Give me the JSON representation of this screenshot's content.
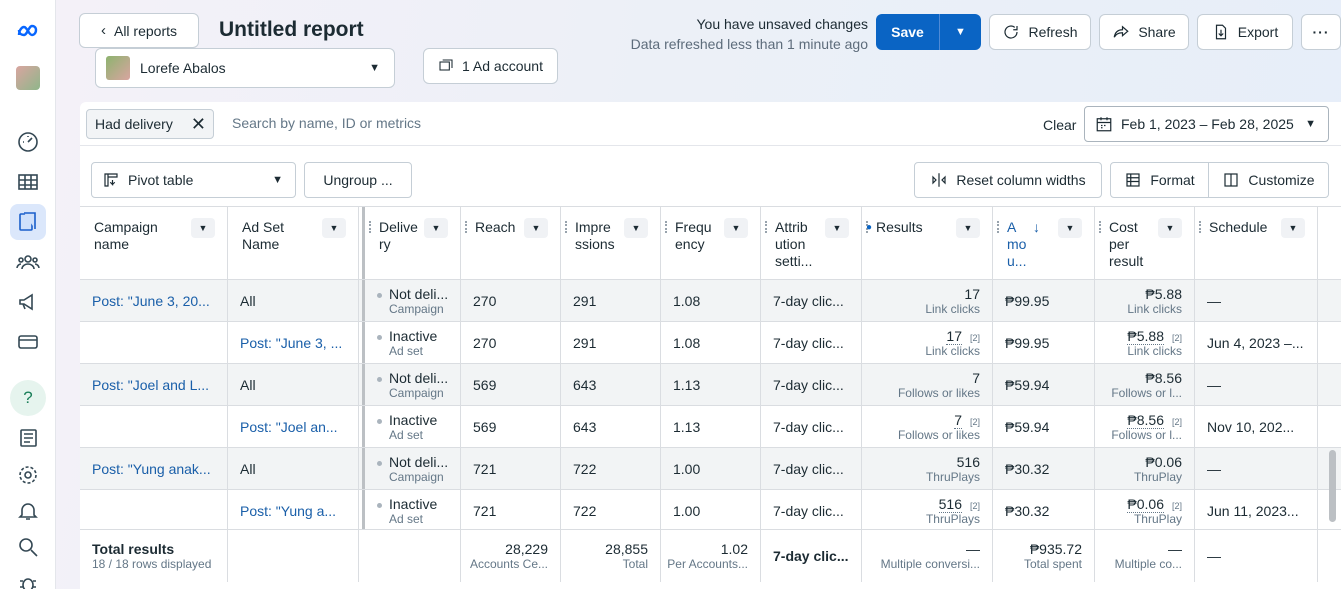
{
  "header": {
    "back_label": "All reports",
    "title": "Untitled report",
    "account_name": "Lorefe Abalos",
    "ad_account_label": "1 Ad account",
    "unsaved_text": "You have unsaved changes",
    "refreshed_text": "Data refreshed less than 1 minute ago",
    "save_label": "Save",
    "refresh_label": "Refresh",
    "share_label": "Share",
    "export_label": "Export"
  },
  "filter": {
    "chip_label": "Had delivery",
    "search_placeholder": "Search by name, ID or metrics",
    "clear_label": "Clear",
    "date_range": "Feb 1, 2023 – Feb 28, 2025"
  },
  "toolbar": {
    "pivot_label": "Pivot table",
    "ungroup_label": "Ungroup ...",
    "reset_label": "Reset column widths",
    "format_label": "Format",
    "customize_label": "Customize"
  },
  "columns": [
    {
      "l1": "Campaign",
      "l2": "name",
      "l3": ""
    },
    {
      "l1": "Ad Set",
      "l2": "Name",
      "l3": ""
    },
    {
      "l1": "Delive",
      "l2": "ry",
      "l3": ""
    },
    {
      "l1": "Reach",
      "l2": "",
      "l3": ""
    },
    {
      "l1": "Impre",
      "l2": "ssions",
      "l3": ""
    },
    {
      "l1": "Frequ",
      "l2": "ency",
      "l3": ""
    },
    {
      "l1": "Attrib",
      "l2": "ution",
      "l3": "setti..."
    },
    {
      "l1": "Results",
      "l2": "",
      "l3": ""
    },
    {
      "l1": "A",
      "l2": "mo",
      "l3": "u..."
    },
    {
      "l1": "Cost",
      "l2": "per",
      "l3": "result"
    },
    {
      "l1": "Schedule",
      "l2": "",
      "l3": ""
    }
  ],
  "rows": [
    {
      "campaign": "Post: \"June 3, 20...",
      "adset": "All",
      "delivery": "Not deli...",
      "delivery_sub": "Campaign",
      "reach": "270",
      "impressions": "291",
      "frequency": "1.08",
      "attribution": "7-day clic...",
      "results": "17",
      "results_sub": "Link clicks",
      "amount": "₱99.95",
      "cost": "₱5.88",
      "cost_sub": "Link clicks",
      "schedule": "—",
      "sup": ""
    },
    {
      "campaign": "",
      "adset": "Post: \"June 3, ...",
      "delivery": "Inactive",
      "delivery_sub": "Ad set",
      "reach": "270",
      "impressions": "291",
      "frequency": "1.08",
      "attribution": "7-day clic...",
      "results": "17",
      "results_sub": "Link clicks",
      "amount": "₱99.95",
      "cost": "₱5.88",
      "cost_sub": "Link clicks",
      "schedule": "Jun 4, 2023 –...",
      "sup": "[2]"
    },
    {
      "campaign": "Post: \"Joel and L...",
      "adset": "All",
      "delivery": "Not deli...",
      "delivery_sub": "Campaign",
      "reach": "569",
      "impressions": "643",
      "frequency": "1.13",
      "attribution": "7-day clic...",
      "results": "7",
      "results_sub": "Follows or likes",
      "amount": "₱59.94",
      "cost": "₱8.56",
      "cost_sub": "Follows or l...",
      "schedule": "—",
      "sup": ""
    },
    {
      "campaign": "",
      "adset": "Post: \"Joel an...",
      "delivery": "Inactive",
      "delivery_sub": "Ad set",
      "reach": "569",
      "impressions": "643",
      "frequency": "1.13",
      "attribution": "7-day clic...",
      "results": "7",
      "results_sub": "Follows or likes",
      "amount": "₱59.94",
      "cost": "₱8.56",
      "cost_sub": "Follows or l...",
      "schedule": "Nov 10, 202...",
      "sup": "[2]"
    },
    {
      "campaign": "Post: \"Yung anak...",
      "adset": "All",
      "delivery": "Not deli...",
      "delivery_sub": "Campaign",
      "reach": "721",
      "impressions": "722",
      "frequency": "1.00",
      "attribution": "7-day clic...",
      "results": "516",
      "results_sub": "ThruPlays",
      "amount": "₱30.32",
      "cost": "₱0.06",
      "cost_sub": "ThruPlay",
      "schedule": "—",
      "sup": ""
    },
    {
      "campaign": "",
      "adset": "Post: \"Yung a...",
      "delivery": "Inactive",
      "delivery_sub": "Ad set",
      "reach": "721",
      "impressions": "722",
      "frequency": "1.00",
      "attribution": "7-day clic...",
      "results": "516",
      "results_sub": "ThruPlays",
      "amount": "₱30.32",
      "cost": "₱0.06",
      "cost_sub": "ThruPlay",
      "schedule": "Jun 11, 2023...",
      "sup": "[2]"
    }
  ],
  "totals": {
    "label": "Total results",
    "rows_displayed": "18 / 18 rows displayed",
    "reach": "28,229",
    "reach_sub": "Accounts Ce...",
    "impressions": "28,855",
    "impressions_sub": "Total",
    "frequency": "1.02",
    "frequency_sub": "Per Accounts...",
    "attribution": "7-day clic...",
    "results": "—",
    "results_sub": "Multiple conversi...",
    "amount": "₱935.72",
    "amount_sub": "Total spent",
    "cost": "—",
    "cost_sub": "Multiple co...",
    "schedule": "—"
  },
  "colors": {
    "accent": "#0a64c4",
    "link": "#1a5fa9"
  }
}
